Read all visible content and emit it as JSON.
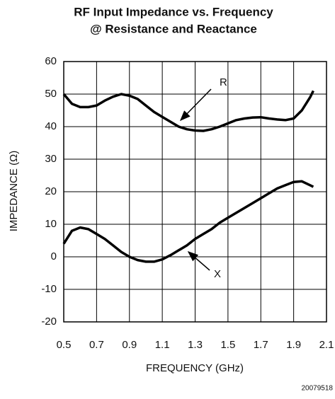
{
  "chart_data": {
    "type": "line",
    "title": "RF Input Impedance vs. Frequency",
    "subtitle": "@ Resistance and Reactance",
    "x_label": "FREQUENCY (GHz)",
    "y_label": "IMPEDANCE (Ω)",
    "note": "20079518",
    "annotations": [
      "R",
      "X"
    ],
    "x": [
      0.5,
      0.55,
      0.6,
      0.65,
      0.7,
      0.75,
      0.8,
      0.85,
      0.9,
      0.95,
      1.0,
      1.05,
      1.1,
      1.15,
      1.2,
      1.25,
      1.3,
      1.35,
      1.4,
      1.45,
      1.5,
      1.55,
      1.6,
      1.65,
      1.7,
      1.75,
      1.8,
      1.85,
      1.9,
      1.95,
      2.0,
      2.02
    ],
    "series": [
      {
        "name": "R",
        "color": "#000000",
        "values": [
          50,
          47,
          46,
          46,
          46.5,
          48,
          49.2,
          50,
          49.5,
          48.5,
          46.5,
          44.5,
          43,
          41.5,
          40,
          39.2,
          38.8,
          38.7,
          39.2,
          40,
          41,
          42,
          42.5,
          42.8,
          42.9,
          42.5,
          42.2,
          42,
          42.5,
          45,
          49,
          51
        ]
      },
      {
        "name": "X",
        "color": "#000000",
        "values": [
          4,
          8,
          9,
          8.5,
          7,
          5.5,
          3.5,
          1.5,
          0,
          -1,
          -1.5,
          -1.5,
          -0.8,
          0.5,
          2,
          3.5,
          5.5,
          7,
          8.5,
          10.5,
          12,
          13.5,
          15,
          16.5,
          18,
          19.5,
          21,
          22,
          23,
          23.2,
          22,
          21.5
        ]
      }
    ],
    "xlim": [
      0.5,
      2.1
    ],
    "xticks": [
      0.5,
      0.7,
      0.9,
      1.1,
      1.3,
      1.5,
      1.7,
      1.9,
      2.1
    ],
    "ylim": [
      -20,
      60
    ],
    "yticks": [
      -20,
      -10,
      0,
      10,
      20,
      30,
      40,
      50,
      60
    ],
    "grid": true
  }
}
